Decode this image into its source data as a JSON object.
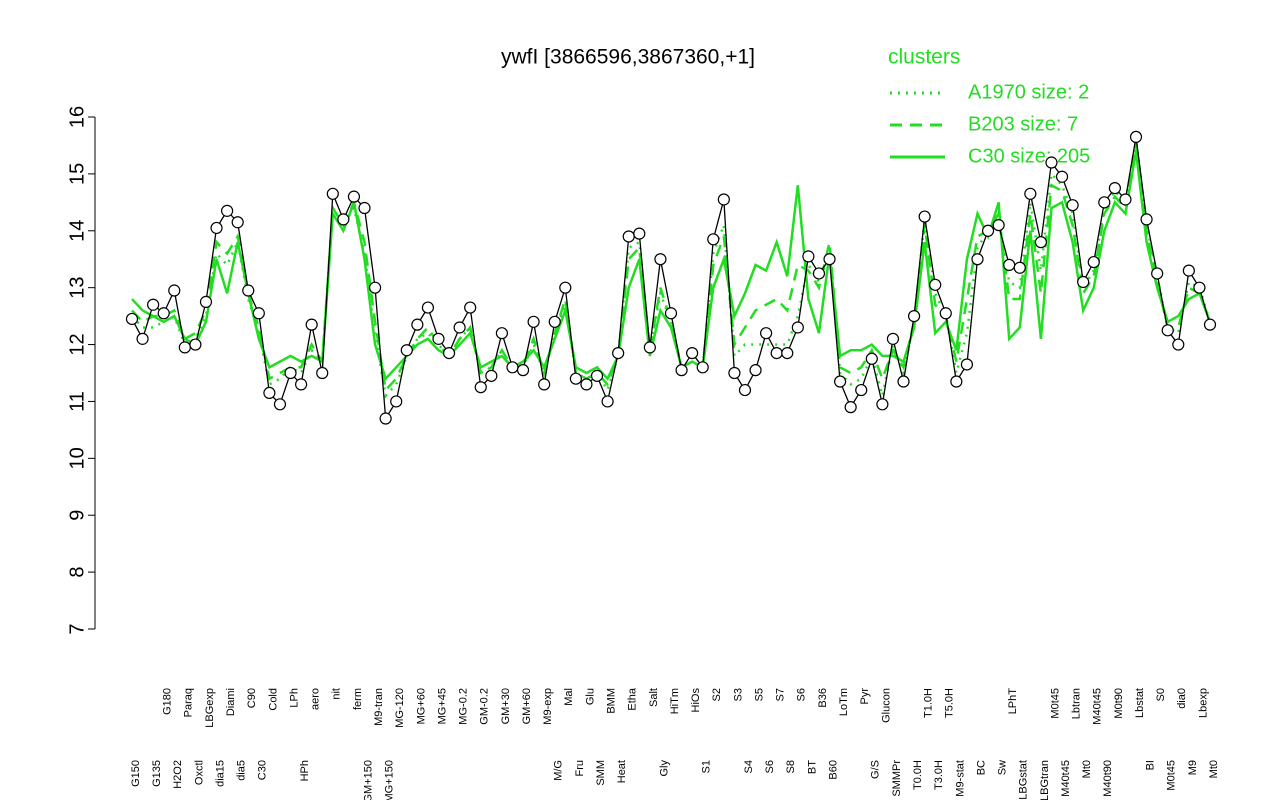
{
  "chart_data": {
    "type": "line",
    "title": "ywfI [3866596,3867360,+1]",
    "legend_title": "clusters",
    "ylim": [
      7,
      16
    ],
    "yticks": [
      7,
      8,
      9,
      10,
      11,
      12,
      13,
      14,
      15,
      16
    ],
    "color": "#000000",
    "categories": [
      "G150",
      null,
      "G135",
      "G180",
      "H2O2",
      "Paraq",
      "Oxctl",
      "LBGexp",
      "dia15",
      "Diami",
      "dia5",
      "C90",
      "C30",
      "Cold",
      null,
      "LPh",
      "HPh",
      "aero",
      null,
      "nit",
      null,
      "ferm",
      "GM+150",
      "M9-tran",
      "MG+150",
      "MG-120",
      null,
      "MG+60",
      null,
      "MG+45",
      null,
      "MG-0.2",
      null,
      "GM-0.2",
      null,
      "GM+30",
      null,
      "GM+60",
      null,
      "M9-exp",
      "M/G",
      "Mal",
      "Fru",
      "Glu",
      "SMM",
      "BMM",
      "Heat",
      "Etha",
      null,
      "Salt",
      "Gly",
      "HiTm",
      null,
      "HiOs",
      "S1",
      "S2",
      null,
      "S3",
      "S4",
      "S5",
      "S6",
      "S7",
      "S8",
      "S6",
      "BT",
      "B36",
      "B60",
      "LoTm",
      null,
      "Pyr",
      "G/S",
      "Glucon",
      "SMMPr",
      null,
      "T0.0H",
      "T1.0H",
      "T3.0H",
      "T5.0H",
      "M9-stat",
      null,
      "BC",
      null,
      "Sw",
      "LPhT",
      "LBGstat",
      null,
      "LBGtran",
      "M0t45",
      "M40t45",
      "Lbtran",
      "Mt0",
      "M40t45",
      "M40t90",
      "M0t90",
      null,
      "Lbstat",
      "BI",
      "S0",
      "M0t45",
      "dia0",
      "M9",
      "Lbexp",
      "Mt0"
    ],
    "values": [
      12.45,
      12.1,
      12.7,
      12.55,
      12.95,
      11.95,
      12.0,
      12.75,
      14.05,
      14.35,
      14.15,
      12.95,
      12.55,
      11.15,
      10.95,
      11.5,
      11.3,
      12.35,
      11.5,
      14.65,
      14.2,
      14.6,
      14.4,
      13.0,
      10.7,
      11.0,
      11.9,
      12.35,
      12.65,
      12.1,
      11.85,
      12.3,
      12.65,
      11.25,
      11.45,
      12.2,
      11.6,
      11.55,
      12.4,
      11.3,
      12.4,
      13.0,
      11.4,
      11.3,
      11.45,
      11.0,
      11.85,
      13.9,
      13.95,
      11.95,
      13.5,
      12.55,
      11.55,
      11.85,
      11.6,
      13.85,
      14.55,
      11.5,
      11.2,
      11.55,
      12.2,
      11.85,
      11.85,
      12.3,
      13.55,
      13.25,
      13.5,
      11.35,
      10.9,
      11.2,
      11.75,
      10.95,
      12.1,
      11.35,
      12.5,
      14.25,
      13.05,
      12.55,
      11.35,
      11.65,
      13.5,
      14.0,
      14.1,
      13.4,
      13.35,
      14.65,
      13.8,
      15.2,
      14.95,
      14.45,
      13.1,
      13.45,
      14.5,
      14.75,
      14.55,
      15.65,
      14.2,
      13.25,
      12.25,
      12.0,
      13.3,
      13.0,
      12.35
    ],
    "series": [
      {
        "name": "A1970 size: 2",
        "color": "#22dd22",
        "dash": "dotted",
        "values": [
          12.5,
          12.3,
          12.3,
          12.4,
          12.5,
          12.0,
          12.1,
          12.5,
          13.6,
          13.4,
          13.8,
          12.8,
          12.2,
          11.3,
          11.4,
          11.6,
          11.5,
          11.9,
          11.7,
          14.4,
          14.1,
          14.4,
          13.6,
          12.2,
          11.1,
          11.3,
          11.8,
          12.1,
          12.2,
          12.0,
          11.8,
          12.1,
          12.3,
          11.5,
          11.6,
          11.9,
          11.6,
          11.6,
          12.0,
          11.5,
          12.2,
          12.7,
          11.5,
          11.4,
          11.5,
          11.2,
          11.8,
          13.7,
          13.8,
          11.9,
          12.9,
          12.4,
          11.6,
          11.7,
          11.6,
          13.6,
          14.1,
          11.8,
          12.0,
          12.0,
          12.0,
          12.0,
          12.0,
          12.5,
          13.4,
          13.1,
          13.6,
          11.5,
          11.3,
          11.4,
          11.8,
          11.1,
          12.0,
          11.5,
          12.4,
          14.2,
          12.9,
          12.5,
          11.5,
          12.2,
          13.7,
          14.0,
          14.2,
          13.1,
          13.0,
          14.5,
          13.3,
          15.0,
          14.8,
          14.3,
          13.0,
          13.3,
          14.4,
          14.7,
          14.5,
          15.6,
          14.1,
          13.2,
          12.3,
          12.2,
          13.1,
          13.0,
          12.4
        ]
      },
      {
        "name": "B203 size: 7",
        "color": "#22dd22",
        "dash": "dashed",
        "values": [
          12.6,
          12.4,
          12.5,
          12.5,
          12.6,
          12.1,
          12.2,
          12.6,
          13.8,
          13.6,
          13.9,
          12.9,
          12.3,
          11.4,
          11.5,
          11.6,
          11.6,
          12.0,
          11.7,
          14.4,
          14.1,
          14.5,
          13.8,
          12.4,
          11.2,
          11.4,
          11.8,
          12.1,
          12.3,
          12.0,
          11.8,
          12.1,
          12.3,
          11.5,
          11.6,
          11.9,
          11.6,
          11.6,
          12.1,
          11.5,
          12.2,
          12.8,
          11.5,
          11.4,
          11.5,
          11.3,
          11.8,
          13.5,
          13.7,
          11.9,
          13.0,
          12.4,
          11.6,
          11.7,
          11.6,
          13.4,
          13.9,
          12.0,
          12.3,
          12.6,
          12.7,
          12.8,
          12.6,
          13.4,
          13.3,
          13.0,
          13.8,
          11.6,
          11.5,
          11.6,
          11.9,
          11.4,
          11.9,
          11.6,
          12.4,
          14.1,
          12.7,
          12.5,
          11.7,
          12.8,
          13.9,
          14.0,
          14.3,
          12.8,
          12.8,
          14.3,
          12.9,
          14.8,
          14.7,
          14.1,
          12.9,
          13.2,
          14.3,
          14.6,
          14.4,
          15.5,
          14.0,
          13.1,
          12.3,
          12.3,
          13.0,
          12.9,
          12.4
        ]
      },
      {
        "name": "C30 size: 205",
        "color": "#22dd22",
        "dash": "solid",
        "values": [
          12.8,
          12.6,
          12.5,
          12.4,
          12.5,
          12.1,
          12.0,
          12.4,
          13.5,
          12.9,
          13.8,
          12.9,
          12.1,
          11.6,
          11.7,
          11.8,
          11.7,
          11.8,
          11.7,
          14.3,
          14.0,
          14.5,
          13.5,
          12.0,
          11.4,
          11.6,
          11.8,
          12.0,
          12.1,
          11.9,
          11.8,
          12.0,
          12.2,
          11.6,
          11.7,
          11.8,
          11.6,
          11.7,
          11.9,
          11.6,
          12.1,
          12.6,
          11.6,
          11.5,
          11.6,
          11.4,
          11.8,
          13.0,
          13.5,
          11.8,
          12.6,
          12.3,
          11.6,
          11.7,
          11.6,
          13.0,
          13.5,
          12.5,
          12.9,
          13.4,
          13.3,
          13.8,
          13.2,
          14.8,
          12.8,
          12.2,
          13.6,
          11.8,
          11.9,
          11.9,
          12.0,
          11.8,
          11.8,
          11.7,
          12.3,
          13.8,
          12.2,
          12.4,
          11.9,
          13.5,
          14.3,
          13.9,
          14.5,
          12.1,
          12.3,
          14.0,
          12.1,
          14.4,
          14.5,
          13.8,
          12.6,
          13.0,
          14.0,
          14.5,
          14.3,
          15.4,
          13.8,
          13.0,
          12.4,
          12.5,
          12.8,
          12.9,
          12.4
        ]
      }
    ]
  }
}
